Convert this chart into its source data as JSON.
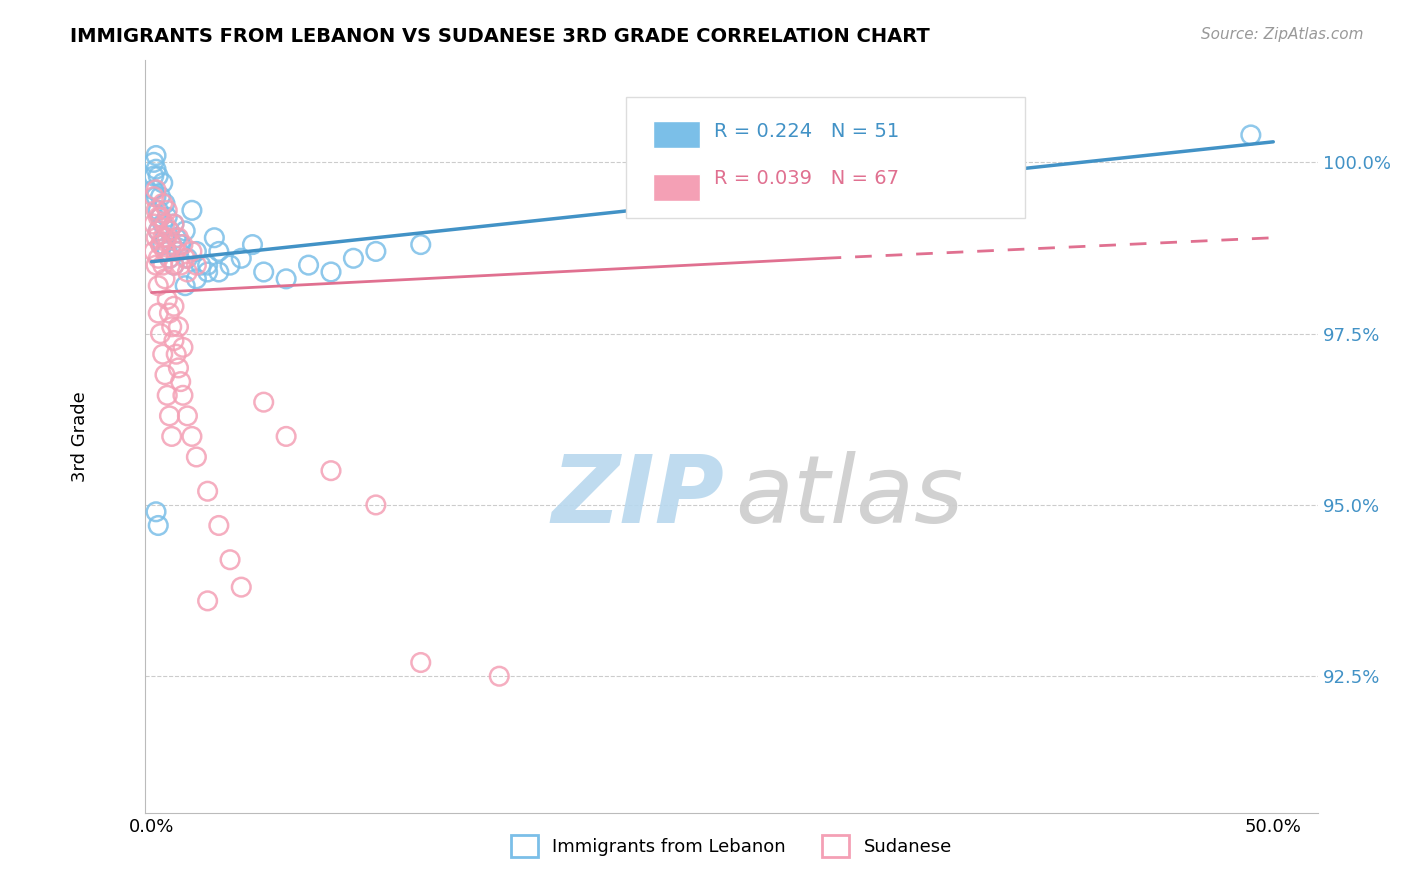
{
  "title": "IMMIGRANTS FROM LEBANON VS SUDANESE 3RD GRADE CORRELATION CHART",
  "source": "Source: ZipAtlas.com",
  "ylabel": "3rd Grade",
  "ylim": [
    90.5,
    101.5
  ],
  "xlim": [
    -0.003,
    0.52
  ],
  "blue_R": 0.224,
  "blue_N": 51,
  "pink_R": 0.039,
  "pink_N": 67,
  "blue_color": "#7BBFE8",
  "pink_color": "#F4A0B5",
  "blue_line_color": "#4292C6",
  "pink_line_color": "#E07090",
  "ytick_vals": [
    92.5,
    95.0,
    97.5,
    100.0
  ],
  "blue_line": {
    "x0": 0.0,
    "y0": 98.55,
    "x1": 0.5,
    "y1": 100.3
  },
  "pink_line_solid": {
    "x0": 0.0,
    "y0": 98.1,
    "x1": 0.3,
    "y1": 98.6
  },
  "pink_line_dashed": {
    "x0": 0.3,
    "y0": 98.6,
    "x1": 0.5,
    "y1": 98.9
  },
  "blue_points_x": [
    0.001,
    0.001,
    0.001,
    0.002,
    0.002,
    0.002,
    0.003,
    0.003,
    0.003,
    0.004,
    0.004,
    0.005,
    0.005,
    0.005,
    0.006,
    0.006,
    0.007,
    0.007,
    0.008,
    0.008,
    0.009,
    0.01,
    0.01,
    0.011,
    0.012,
    0.013,
    0.015,
    0.016,
    0.018,
    0.02,
    0.022,
    0.025,
    0.028,
    0.03,
    0.035,
    0.04,
    0.045,
    0.05,
    0.06,
    0.07,
    0.08,
    0.09,
    0.1,
    0.12,
    0.015,
    0.02,
    0.025,
    0.03,
    0.002,
    0.003,
    0.49
  ],
  "blue_points_y": [
    99.8,
    100.0,
    99.6,
    99.9,
    100.1,
    99.5,
    99.8,
    99.3,
    99.0,
    99.5,
    99.2,
    99.7,
    99.1,
    98.8,
    99.4,
    98.9,
    99.2,
    98.7,
    99.0,
    98.6,
    98.8,
    99.1,
    98.5,
    98.9,
    98.7,
    98.8,
    99.0,
    98.6,
    99.3,
    98.7,
    98.5,
    98.4,
    98.9,
    98.7,
    98.5,
    98.6,
    98.8,
    98.4,
    98.3,
    98.5,
    98.4,
    98.6,
    98.7,
    98.8,
    98.2,
    98.3,
    98.5,
    98.4,
    94.9,
    94.7,
    100.4
  ],
  "pink_points_x": [
    0.001,
    0.001,
    0.001,
    0.002,
    0.002,
    0.002,
    0.003,
    0.003,
    0.003,
    0.004,
    0.004,
    0.005,
    0.005,
    0.006,
    0.006,
    0.007,
    0.007,
    0.008,
    0.008,
    0.009,
    0.01,
    0.01,
    0.011,
    0.012,
    0.013,
    0.014,
    0.015,
    0.016,
    0.018,
    0.02,
    0.003,
    0.004,
    0.005,
    0.006,
    0.007,
    0.008,
    0.009,
    0.01,
    0.012,
    0.014,
    0.002,
    0.003,
    0.004,
    0.005,
    0.006,
    0.007,
    0.008,
    0.009,
    0.01,
    0.011,
    0.012,
    0.013,
    0.014,
    0.016,
    0.018,
    0.02,
    0.025,
    0.03,
    0.035,
    0.04,
    0.05,
    0.06,
    0.08,
    0.1,
    0.025,
    0.12,
    0.155
  ],
  "pink_points_y": [
    99.5,
    99.1,
    98.7,
    99.3,
    98.9,
    98.5,
    99.0,
    98.6,
    98.2,
    99.2,
    98.8,
    99.4,
    98.9,
    99.1,
    98.7,
    99.3,
    98.9,
    99.0,
    98.6,
    98.8,
    99.1,
    98.5,
    98.7,
    98.9,
    98.5,
    98.8,
    98.6,
    98.4,
    98.7,
    98.5,
    97.8,
    97.5,
    97.2,
    96.9,
    96.6,
    96.3,
    96.0,
    97.9,
    97.6,
    97.3,
    99.6,
    99.2,
    98.8,
    98.5,
    98.3,
    98.0,
    97.8,
    97.6,
    97.4,
    97.2,
    97.0,
    96.8,
    96.6,
    96.3,
    96.0,
    95.7,
    95.2,
    94.7,
    94.2,
    93.8,
    96.5,
    96.0,
    95.5,
    95.0,
    93.6,
    92.7,
    92.5
  ]
}
